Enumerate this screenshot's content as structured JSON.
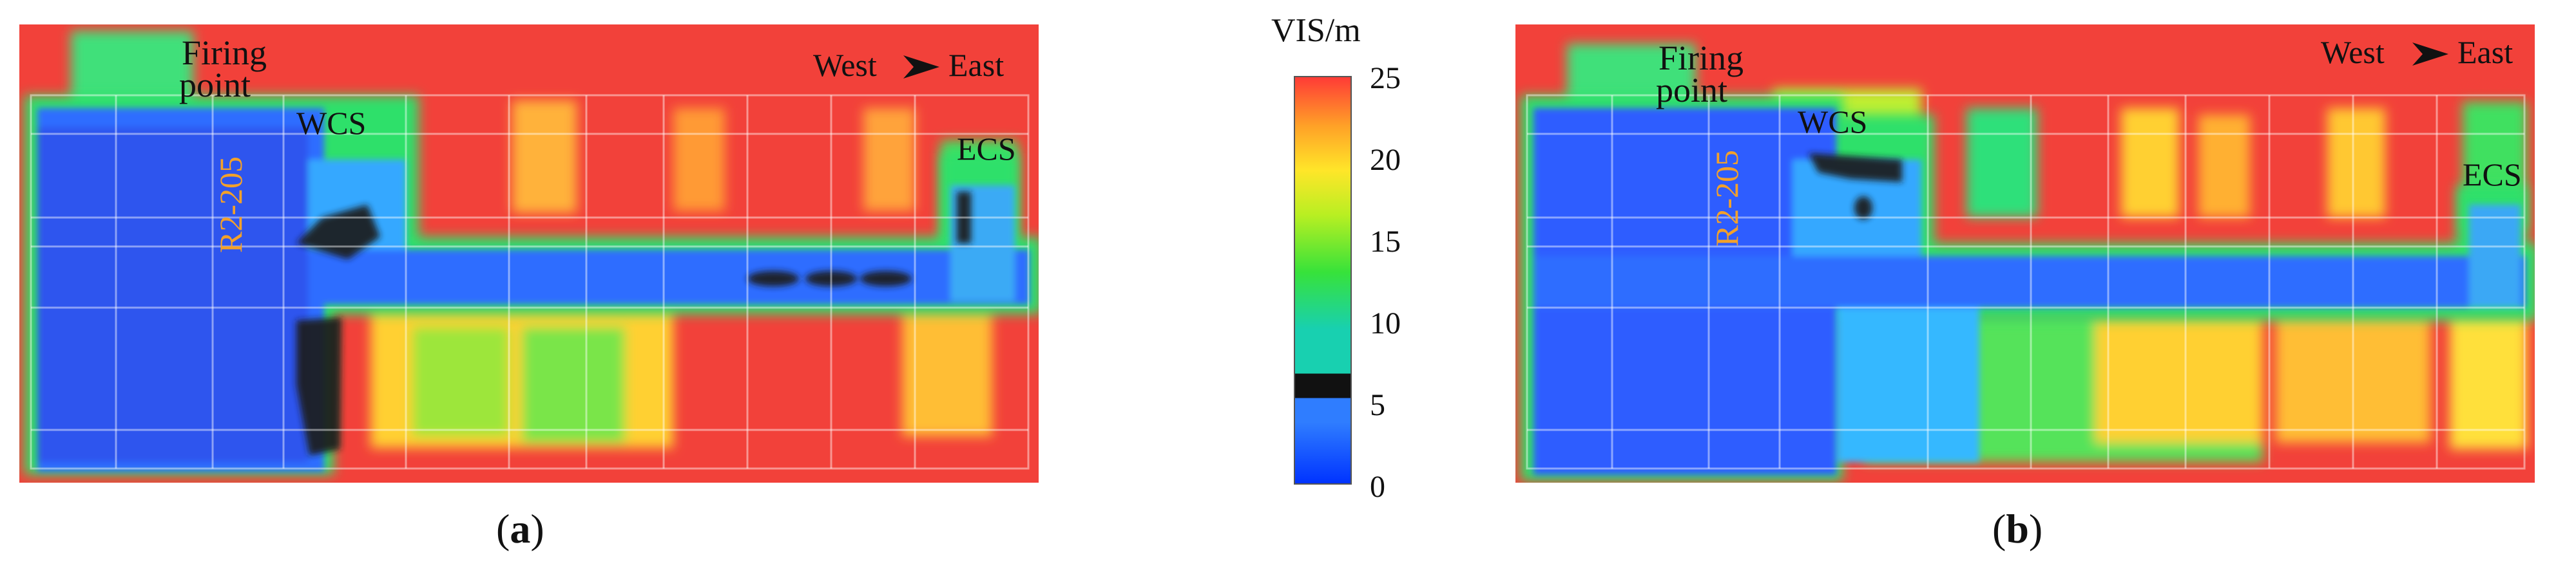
{
  "figure": {
    "quantity_unit": "VIS/m",
    "colorbar_ticks": [
      "25",
      "20",
      "15",
      "10",
      "5",
      "0"
    ],
    "colorbar_range": [
      0,
      25
    ],
    "colorbar_colors": [
      "#0033ff",
      "#2f7dff",
      "#111111",
      "#18d0b0",
      "#37e23a",
      "#b8ef22",
      "#ffe629",
      "#ffa127",
      "#ff3b36"
    ],
    "panels": [
      {
        "id": "a",
        "label": "a",
        "annotations": {
          "firing": "Firing",
          "point": "point",
          "wcs": "WCS",
          "ecs": "ECS",
          "room": "R2-205",
          "west": "West",
          "east": "East"
        }
      },
      {
        "id": "b",
        "label": "b",
        "annotations": {
          "firing": "Firing",
          "point": "point",
          "wcs": "WCS",
          "ecs": "ECS",
          "room": "R2-205",
          "west": "West",
          "east": "East"
        }
      }
    ]
  }
}
